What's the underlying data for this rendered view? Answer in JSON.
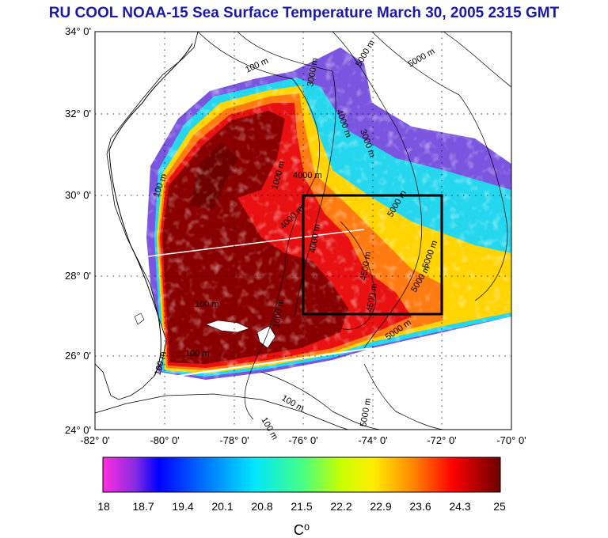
{
  "title": "RU COOL  NOAA-15 Sea Surface Temperature March 30, 2005 2315 GMT",
  "map": {
    "lat_labels": [
      "34° 0'",
      "32° 0'",
      "30° 0'",
      "28° 0'",
      "26° 0'",
      "24° 0'"
    ],
    "lon_labels": [
      "-82° 0'",
      "-80° 0'",
      "-78° 0'",
      "-76° 0'",
      "-74° 0'",
      "-72° 0'",
      "-70° 0'"
    ],
    "lat_range": [
      24,
      34
    ],
    "lon_range": [
      -82,
      -70
    ],
    "grid": "dotted",
    "study_box": {
      "lon": [
        -76,
        -72
      ],
      "lat": [
        27,
        30
      ]
    },
    "contour_labels": [
      "100 m",
      "100 m",
      "100 m",
      "100 m",
      "100 m",
      "100 m",
      "1000 m",
      "1000 m",
      "4000 m",
      "3000 m",
      "4000 m",
      "3000 m",
      "4000 m",
      "4000 m",
      "4500 m",
      "4500 m",
      "5000 m",
      "5000 m",
      "5000 m",
      "5000 m",
      "5000 m",
      "5000 m",
      "100 m",
      "5000 m"
    ]
  },
  "colorbar": {
    "tick_labels": [
      "18",
      "18.7",
      "19.4",
      "20.1",
      "20.8",
      "21.5",
      "22.2",
      "22.9",
      "23.6",
      "24.3",
      "25"
    ],
    "unit": "C⁰",
    "colors": [
      "#ff2ee0",
      "#8a2be2",
      "#0000ff",
      "#0077ff",
      "#00e6ff",
      "#44ff88",
      "#c8ff00",
      "#ffee00",
      "#ff8800",
      "#ff0000",
      "#6b0000"
    ]
  }
}
